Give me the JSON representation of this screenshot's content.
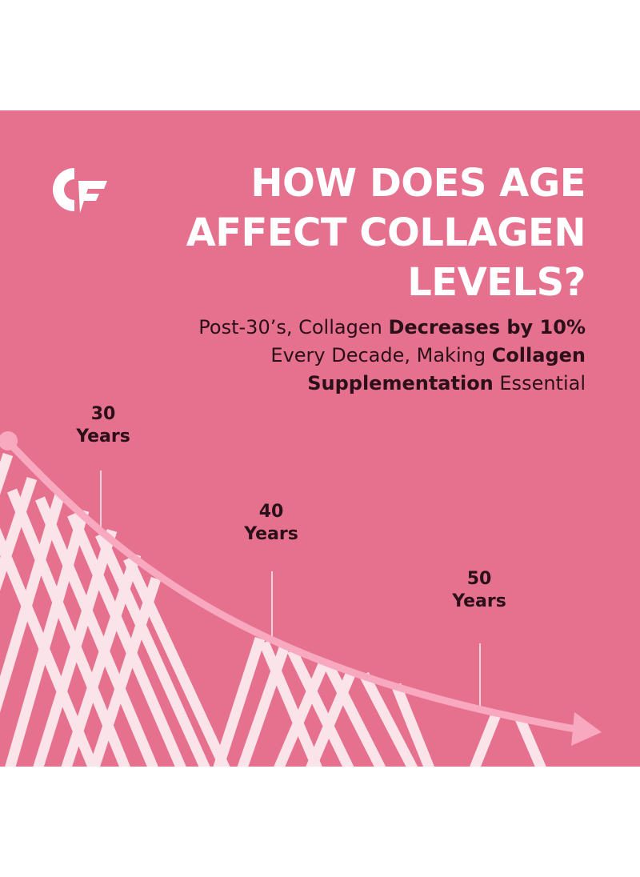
{
  "brand": {
    "logo_icon": "cf-monogram-logo",
    "colors": {
      "background": "#e6718f",
      "fibers": "#fbe3ea",
      "curve": "#f8a9bf",
      "text_dark": "#2b1019",
      "text_light": "#ffffff"
    }
  },
  "headline": {
    "line1": "HOW DOES AGE",
    "line2": "AFFECT COLLAGEN",
    "line3": "LEVELS?"
  },
  "subheadline": {
    "part1": "Post-30’s, Collagen ",
    "part2_bold": "Decreases by 10%",
    "part3": " Every Decade, Making ",
    "part4_bold": "Collagen Supplementation",
    "part5": " Essential"
  },
  "ages": [
    {
      "number": "30",
      "unit": "Years"
    },
    {
      "number": "40",
      "unit": "Years"
    },
    {
      "number": "50",
      "unit": "Years"
    }
  ]
}
